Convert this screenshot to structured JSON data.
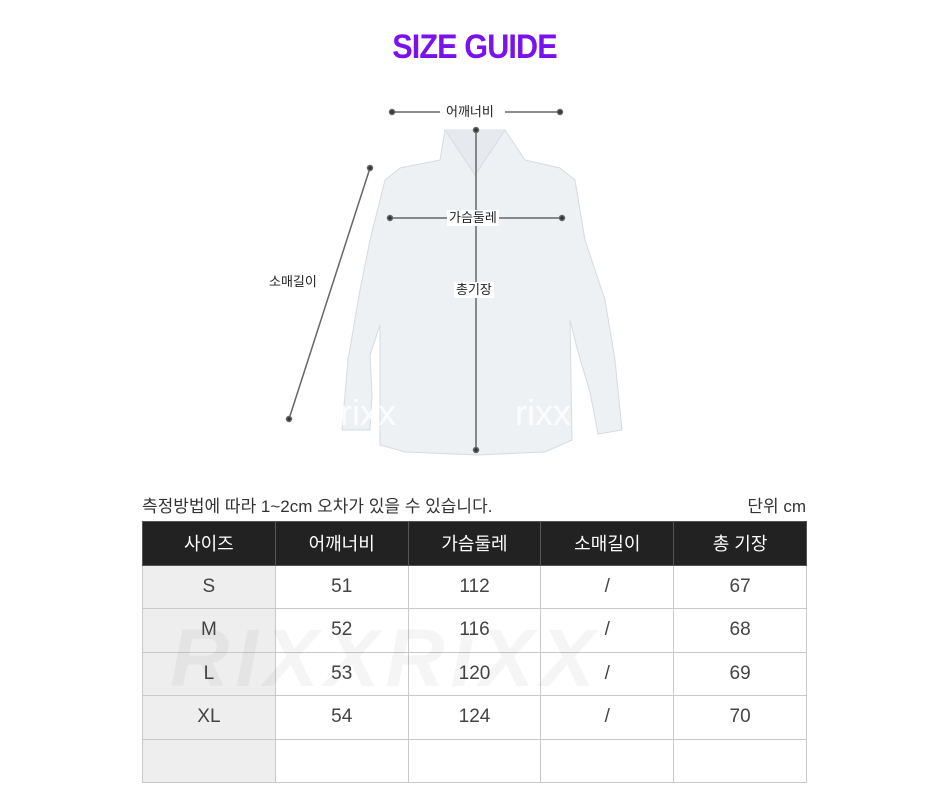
{
  "title": "SIZE GUIDE",
  "figure": {
    "labels": {
      "shoulder": "어깨너비",
      "chest": "가슴둘레",
      "sleeve": "소매길이",
      "length": "총기장"
    },
    "watermark": "rixx"
  },
  "note": "측정방법에 따라 1~2cm 오차가 있을 수 있습니다.",
  "unit": "단위 cm",
  "table": {
    "headers": [
      "사이즈",
      "어깨너비",
      "가슴둘레",
      "소매길이",
      "총 기장"
    ],
    "rows": [
      [
        "S",
        "51",
        "112",
        "/",
        "67"
      ],
      [
        "M",
        "52",
        "116",
        "/",
        "68"
      ],
      [
        "L",
        "53",
        "120",
        "/",
        "69"
      ],
      [
        "XL",
        "54",
        "124",
        "/",
        "70"
      ],
      [
        "",
        "",
        "",
        "",
        ""
      ]
    ],
    "watermark": "RIXXRIXX"
  },
  "colors": {
    "title": "#7a12f0",
    "header_bg": "#222222",
    "first_col_bg": "#eeeeee"
  }
}
